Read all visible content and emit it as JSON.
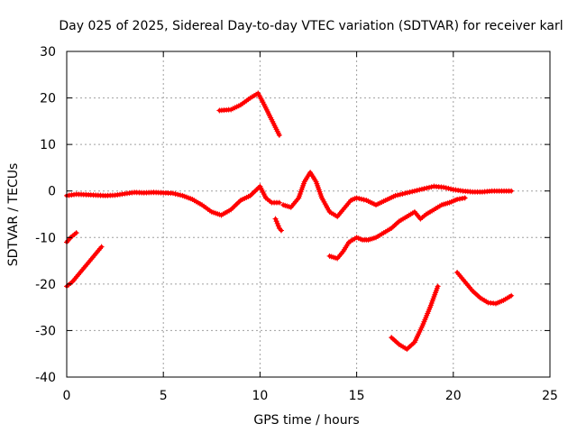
{
  "chart_data": {
    "type": "scatter",
    "title": "Day 025 of 2025, Sidereal Day-to-day VTEC variation (SDTVAR) for receiver karl",
    "xlabel": "GPS time / hours",
    "ylabel": "SDTVAR / TECUs",
    "xlim": [
      0,
      25
    ],
    "ylim": [
      -40,
      30
    ],
    "xticks": [
      "0",
      "5",
      "10",
      "15",
      "20",
      "25"
    ],
    "xtick_values": [
      0,
      5,
      10,
      15,
      20,
      25
    ],
    "yticks": [
      "30",
      "20",
      "10",
      "0",
      "-10",
      "-20",
      "-30",
      "-40"
    ],
    "ytick_values": [
      30,
      20,
      10,
      0,
      -10,
      -20,
      -30,
      -40
    ],
    "grid": true,
    "legend": "none",
    "marker_color": "#ff0000",
    "series": [
      {
        "name": "track-main",
        "x": [
          0.0,
          0.5,
          1.0,
          1.5,
          2.0,
          2.5,
          3.0,
          3.5,
          4.0,
          4.5,
          5.0,
          5.5,
          6.0,
          6.5,
          7.0,
          7.5,
          8.0,
          8.5,
          9.0,
          9.5,
          10.0,
          10.3,
          10.6,
          11.0
        ],
        "y": [
          -1.0,
          -0.7,
          -0.8,
          -0.9,
          -1.0,
          -0.9,
          -0.6,
          -0.3,
          -0.4,
          -0.3,
          -0.4,
          -0.5,
          -1.0,
          -1.8,
          -3.0,
          -4.5,
          -5.2,
          -4.0,
          -2.0,
          -1.0,
          1.0,
          -1.5,
          -2.5,
          -2.5
        ]
      },
      {
        "name": "track-dip",
        "x": [
          10.8,
          10.9,
          11.0,
          11.1
        ],
        "y": [
          -6.0,
          -7.0,
          -8.0,
          -8.5
        ]
      },
      {
        "name": "track-peak",
        "x": [
          7.9,
          8.5,
          9.0,
          9.5,
          9.9,
          10.1,
          10.4,
          10.7,
          11.0
        ],
        "y": [
          17.3,
          17.5,
          18.5,
          20.0,
          21.0,
          19.5,
          17.0,
          14.5,
          12.0
        ]
      },
      {
        "name": "track-mid",
        "x": [
          11.2,
          11.6,
          12.0,
          12.3,
          12.6,
          12.9,
          13.2,
          13.6,
          14.0,
          14.3,
          14.7,
          15.0,
          15.5,
          16.0,
          16.5,
          17.0,
          17.5,
          18.0,
          18.5,
          19.0,
          19.5,
          20.0,
          20.5,
          21.0,
          21.5,
          22.0,
          22.5,
          23.0
        ],
        "y": [
          -3.0,
          -3.5,
          -1.5,
          2.0,
          4.0,
          2.0,
          -1.5,
          -4.5,
          -5.5,
          -4.0,
          -2.0,
          -1.5,
          -2.0,
          -3.0,
          -2.0,
          -1.0,
          -0.5,
          0.0,
          0.5,
          1.0,
          0.8,
          0.3,
          0.0,
          -0.2,
          -0.2,
          0.0,
          0.0,
          0.0
        ]
      },
      {
        "name": "track-lower-left",
        "x": [
          0.0,
          0.2,
          0.5
        ],
        "y": [
          -11.0,
          -10.0,
          -9.0
        ]
      },
      {
        "name": "track-lower-left-2",
        "x": [
          0.0,
          0.3,
          0.6,
          0.9,
          1.2,
          1.5,
          1.8
        ],
        "y": [
          -20.5,
          -19.5,
          -18.0,
          -16.5,
          -15.0,
          -13.5,
          -12.0
        ]
      },
      {
        "name": "track-center",
        "x": [
          13.6,
          14.0,
          14.3,
          14.6,
          15.0,
          15.3,
          15.6,
          16.0,
          16.4,
          16.8,
          17.2,
          17.6,
          18.0,
          18.3,
          18.6,
          19.0,
          19.4,
          19.8,
          20.2,
          20.6
        ],
        "y": [
          -14.0,
          -14.5,
          -13.0,
          -11.0,
          -10.0,
          -10.5,
          -10.5,
          -10.0,
          -9.0,
          -8.0,
          -6.5,
          -5.5,
          -4.5,
          -6.0,
          -5.0,
          -4.0,
          -3.0,
          -2.5,
          -1.8,
          -1.5
        ]
      },
      {
        "name": "track-bottom",
        "x": [
          16.8,
          17.2,
          17.6,
          18.0,
          18.4,
          18.8,
          19.2
        ],
        "y": [
          -31.5,
          -33.0,
          -34.0,
          -32.5,
          -29.0,
          -25.0,
          -20.5
        ]
      },
      {
        "name": "track-right",
        "x": [
          20.2,
          20.6,
          21.0,
          21.4,
          21.8,
          22.2,
          22.6,
          23.0
        ],
        "y": [
          -17.5,
          -19.5,
          -21.5,
          -23.0,
          -24.0,
          -24.2,
          -23.5,
          -22.5
        ]
      }
    ]
  }
}
